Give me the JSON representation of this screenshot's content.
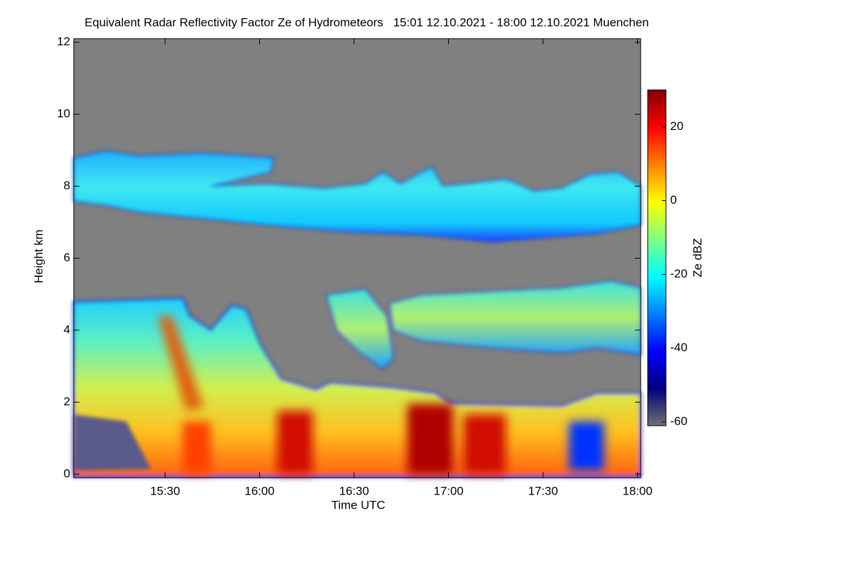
{
  "chart_data": {
    "type": "heatmap",
    "title": "Equivalent Radar Reflectivity Factor Ze of Hydrometeors   15:01 12.10.2021 - 18:00 12.10.2021 Muenchen",
    "x_label": "Time UTC",
    "y_label": "Height km",
    "xlim": [
      901,
      1081
    ],
    "xticks": [
      {
        "value": 930,
        "label": "15:30"
      },
      {
        "value": 960,
        "label": "16:00"
      },
      {
        "value": 990,
        "label": "16:30"
      },
      {
        "value": 1020,
        "label": "17:00"
      },
      {
        "value": 1050,
        "label": "17:30"
      },
      {
        "value": 1080,
        "label": "18:00"
      }
    ],
    "ylim": [
      -0.1,
      12.1
    ],
    "yticks": [
      0,
      2,
      4,
      6,
      8,
      10,
      12
    ],
    "colorbar": {
      "label": "Ze dBZ",
      "lim": [
        -61,
        30
      ],
      "ticks": [
        -60,
        -40,
        -20,
        0,
        20
      ],
      "colors": [
        "#707070",
        "#000080",
        "#0000ff",
        "#0080ff",
        "#00ffff",
        "#80ff80",
        "#ffff00",
        "#ff8000",
        "#ff0000",
        "#800000"
      ]
    }
  }
}
